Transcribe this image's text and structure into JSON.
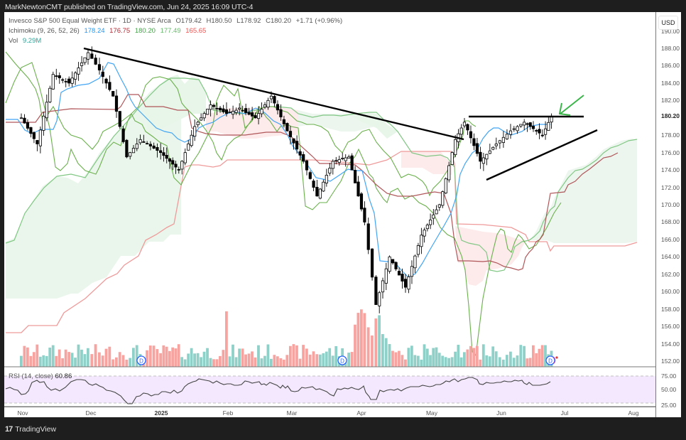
{
  "header": {
    "published": "MarkNewtonCMT published on TradingView.com, Jun 24, 2025 16:09 UTC-4"
  },
  "legend": {
    "symbol": "Invesco S&P 500 Equal Weight ETF · 1D · NYSE Arca",
    "open": "O179.42",
    "high": "H180.50",
    "low": "L178.92",
    "close": "C180.20",
    "change": "+1.71 (+0.96%)",
    "ichimoku_label": "Ichimoku (9, 26, 52, 26)",
    "ichimoku_values": [
      "178.24",
      "176.75",
      "180.20",
      "177.49",
      "165.65"
    ],
    "vol_label": "Vol",
    "vol_value": "9.29M"
  },
  "currency": "USD",
  "rsi": {
    "label": "RSI (14, close)",
    "value": "60.86"
  },
  "footer": {
    "brand": "TradingView",
    "logo": "17"
  },
  "colors": {
    "up_candle": "#ffffff",
    "down_candle": "#000000",
    "tenkan": "#2196f3",
    "kijun": "#b22833",
    "chikou": "#43a047",
    "span_a": "#66bb6a",
    "span_b": "#ef5350",
    "vol_up": "#8fd1c8",
    "vol_down": "#f7a3a0",
    "rsi_line": "#333333",
    "rsi_band": "#f3e7fd",
    "annotation_arrow": "#3bb54a"
  },
  "chart_data": {
    "type": "candlestick",
    "title": "Invesco S&P 500 Equal Weight ETF · 1D · NYSE Arca",
    "xlabel": "",
    "ylabel": "USD",
    "ylim": [
      151.5,
      190.5
    ],
    "y_ticks": [
      "190.00",
      "188.00",
      "186.00",
      "184.00",
      "182.00",
      "180.20",
      "178.00",
      "176.00",
      "174.00",
      "172.00",
      "170.00",
      "168.00",
      "166.00",
      "164.00",
      "162.00",
      "160.00",
      "158.00",
      "156.00",
      "154.00",
      "152.00"
    ],
    "current_price": 180.2,
    "x_ticks": [
      "Nov",
      "Dec",
      "2025",
      "Feb",
      "Mar",
      "Apr",
      "May",
      "Jun",
      "Jul",
      "Aug"
    ],
    "ohlc_last": {
      "open": 179.42,
      "high": 180.5,
      "low": 178.92,
      "close": 180.2,
      "change": 1.71,
      "change_pct": 0.96
    },
    "ichimoku": {
      "params": [
        9,
        26,
        52,
        26
      ],
      "tenkan": 178.24,
      "kijun": 176.75,
      "chikou": 180.2,
      "span_a": 177.49,
      "span_b": 165.65
    },
    "volume_last": "9.29M",
    "price_path": [
      [
        "Nov-01",
        180.0
      ],
      [
        "Nov-08",
        177.0
      ],
      [
        "Nov-15",
        185.0
      ],
      [
        "Nov-22",
        184.0
      ],
      [
        "Dec-01",
        187.5
      ],
      [
        "Dec-06",
        185.5
      ],
      [
        "Dec-12",
        182.5
      ],
      [
        "Dec-18",
        175.5
      ],
      [
        "Dec-24",
        177.5
      ],
      [
        "Jan-02",
        176.0
      ],
      [
        "Jan-10",
        174.0
      ],
      [
        "Jan-17",
        179.0
      ],
      [
        "Jan-24",
        181.5
      ],
      [
        "Jan-31",
        180.5
      ],
      [
        "Feb-07",
        181.0
      ],
      [
        "Feb-14",
        180.0
      ],
      [
        "Feb-21",
        182.5
      ],
      [
        "Feb-28",
        178.5
      ],
      [
        "Mar-07",
        175.0
      ],
      [
        "Mar-13",
        171.0
      ],
      [
        "Mar-20",
        175.0
      ],
      [
        "Mar-27",
        175.5
      ],
      [
        "Apr-03",
        168.0
      ],
      [
        "Apr-08",
        158.5
      ],
      [
        "Apr-14",
        164.0
      ],
      [
        "Apr-21",
        160.5
      ],
      [
        "Apr-28",
        166.5
      ],
      [
        "May-05",
        170.0
      ],
      [
        "May-12",
        177.5
      ],
      [
        "May-16",
        179.5
      ],
      [
        "May-23",
        175.0
      ],
      [
        "May-30",
        177.0
      ],
      [
        "Jun-06",
        178.5
      ],
      [
        "Jun-12",
        179.5
      ],
      [
        "Jun-20",
        178.0
      ],
      [
        "Jun-24",
        180.2
      ]
    ],
    "annotations": [
      {
        "type": "trendline",
        "label": "descending resistance",
        "from": [
          "Nov-29",
          188.0
        ],
        "to": [
          "May-16",
          177.6
        ]
      },
      {
        "type": "horizontal",
        "label": "resistance",
        "from": [
          "May-15",
          180.2
        ],
        "to": [
          "Jul-01",
          180.2
        ]
      },
      {
        "type": "trendline",
        "label": "rising support",
        "from": [
          "May-23",
          173.0
        ],
        "to": [
          "Jul-10",
          178.5
        ]
      },
      {
        "type": "arrow",
        "color": "green",
        "points_to": [
          "Jun-24",
          180.5
        ]
      }
    ],
    "rsi": {
      "ylim": [
        25,
        75
      ],
      "bands": [
        30,
        70
      ],
      "y_ticks": [
        "75.00",
        "50.00",
        "25.00"
      ],
      "last": 60.86,
      "path": [
        [
          "Nov-01",
          56
        ],
        [
          "Nov-08",
          45
        ],
        [
          "Nov-15",
          68
        ],
        [
          "Nov-22",
          62
        ],
        [
          "Dec-01",
          70
        ],
        [
          "Dec-06",
          66
        ],
        [
          "Dec-12",
          55
        ],
        [
          "Dec-18",
          28
        ],
        [
          "Dec-24",
          38
        ],
        [
          "Jan-02",
          35
        ],
        [
          "Jan-10",
          36
        ],
        [
          "Jan-17",
          55
        ],
        [
          "Jan-24",
          62
        ],
        [
          "Jan-31",
          56
        ],
        [
          "Feb-07",
          58
        ],
        [
          "Feb-14",
          52
        ],
        [
          "Feb-21",
          64
        ],
        [
          "Feb-28",
          46
        ],
        [
          "Mar-07",
          40
        ],
        [
          "Mar-13",
          34
        ],
        [
          "Mar-20",
          52
        ],
        [
          "Mar-27",
          50
        ],
        [
          "Apr-03",
          32
        ],
        [
          "Apr-08",
          25
        ],
        [
          "Apr-14",
          45
        ],
        [
          "Apr-21",
          44
        ],
        [
          "Apr-28",
          56
        ],
        [
          "May-05",
          60
        ],
        [
          "May-12",
          66
        ],
        [
          "May-16",
          70
        ],
        [
          "May-23",
          58
        ],
        [
          "May-30",
          60
        ],
        [
          "Jun-06",
          63
        ],
        [
          "Jun-12",
          58
        ],
        [
          "Jun-20",
          55
        ],
        [
          "Jun-24",
          60.86
        ]
      ]
    },
    "volume_events": [
      {
        "marker": "D",
        "date": "Dec-23"
      },
      {
        "marker": "D",
        "date": "Mar-24"
      },
      {
        "marker": "D",
        "date": "Jun-23"
      }
    ]
  }
}
